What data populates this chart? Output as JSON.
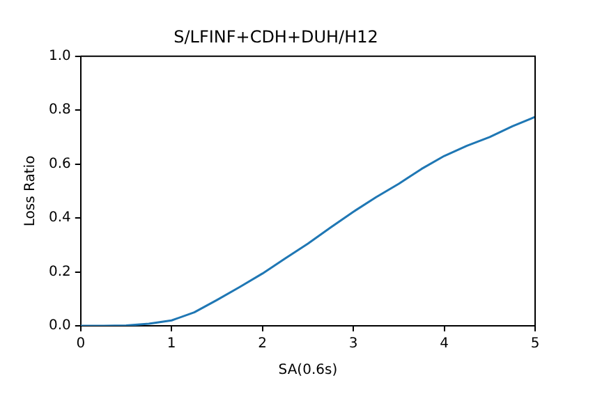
{
  "chart_data": {
    "type": "line",
    "title": "S/LFINF+CDH+DUH/H12",
    "xlabel": "SA(0.6s)",
    "ylabel": "Loss Ratio",
    "x": [
      0,
      0.25,
      0.5,
      0.75,
      1,
      1.25,
      1.5,
      1.75,
      2,
      2.25,
      2.5,
      2.75,
      3,
      3.25,
      3.5,
      3.75,
      4,
      4.25,
      4.5,
      4.75,
      5
    ],
    "series": [
      {
        "color": "#1f77b4",
        "values": [
          0,
          0,
          0.001,
          0.008,
          0.02,
          0.05,
          0.096,
          0.144,
          0.194,
          0.25,
          0.305,
          0.365,
          0.423,
          0.477,
          0.527,
          0.582,
          0.63,
          0.668,
          0.7,
          0.74,
          0.775
        ]
      }
    ],
    "xlim": [
      0,
      5
    ],
    "xticks": [
      0,
      1,
      2,
      3,
      4,
      5
    ],
    "ylim": [
      0,
      1
    ],
    "yticks": [
      {
        "value": 0,
        "label": "0.0"
      },
      0.2,
      0.4,
      0.6,
      0.8,
      {
        "value": 1,
        "label": "1.0"
      }
    ],
    "grid": false,
    "legend": false,
    "marker": "none",
    "line_style": "solid"
  }
}
